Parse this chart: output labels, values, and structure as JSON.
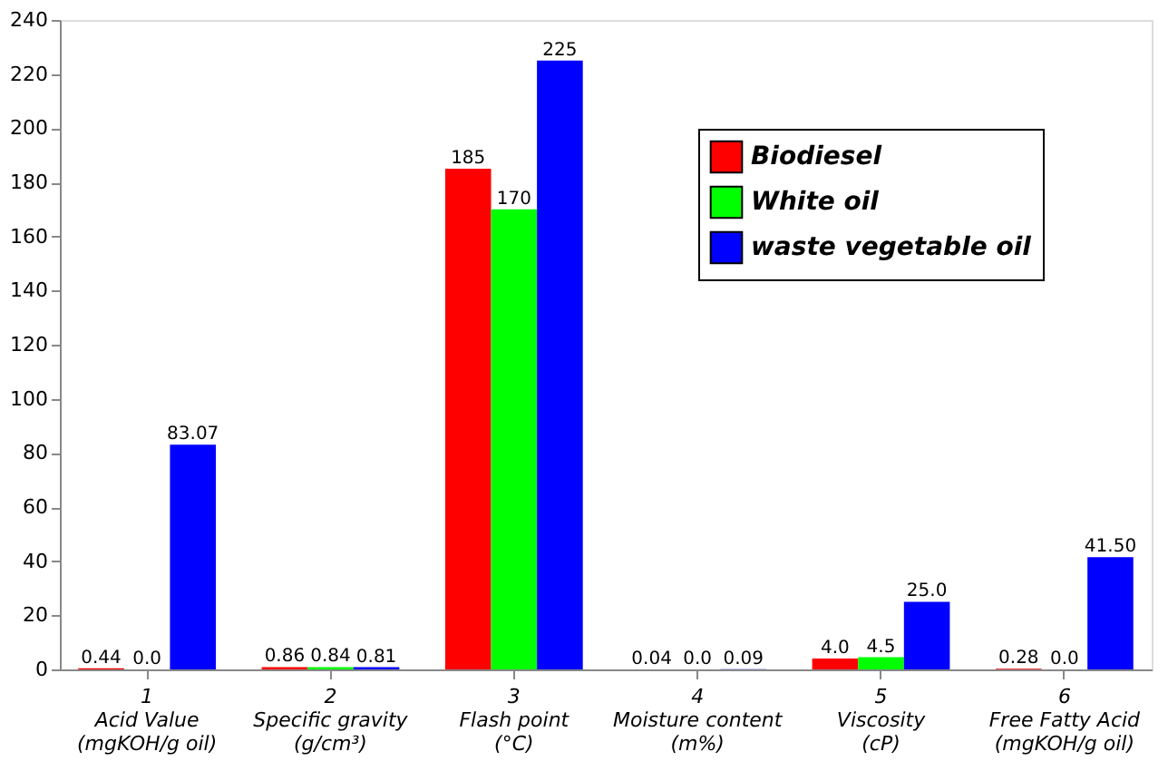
{
  "chart_data": {
    "type": "bar",
    "categories": [
      "1\nAcid Value\n(mgKOH/g oil)",
      "2\nSpecific gravity\n(g/cm³)",
      "3\nFlash point\n(°C)",
      "4\nMoisture content\n(m%)",
      "5\nViscosity\n(cP)",
      "6\nFree Fatty Acid\n(mgKOH/g oil)"
    ],
    "series": [
      {
        "name": "Biodiesel",
        "color": "#ff0000",
        "values": [
          0.44,
          0.86,
          185,
          0.04,
          4.0,
          0.28
        ],
        "value_labels": [
          "0.44",
          "0.86",
          "185",
          "0.04",
          "4.0",
          "0.28"
        ]
      },
      {
        "name": "White oil",
        "color": "#00ff00",
        "values": [
          0.0,
          0.84,
          170,
          0.0,
          4.5,
          0.0
        ],
        "value_labels": [
          "0.0",
          "0.84",
          "170",
          "0.0",
          "4.5",
          "0.0"
        ]
      },
      {
        "name": "waste vegetable oil",
        "color": "#0000ff",
        "values": [
          83.07,
          0.81,
          225,
          0.09,
          25.0,
          41.5
        ],
        "value_labels": [
          "83.07",
          "0.81",
          "225",
          "0.09",
          "25.0",
          "41.50"
        ]
      }
    ],
    "ylim": [
      0,
      240
    ],
    "yticks": [
      0,
      20,
      40,
      60,
      80,
      100,
      120,
      140,
      160,
      180,
      200,
      220,
      240
    ],
    "grid": false,
    "legend": "top right"
  }
}
